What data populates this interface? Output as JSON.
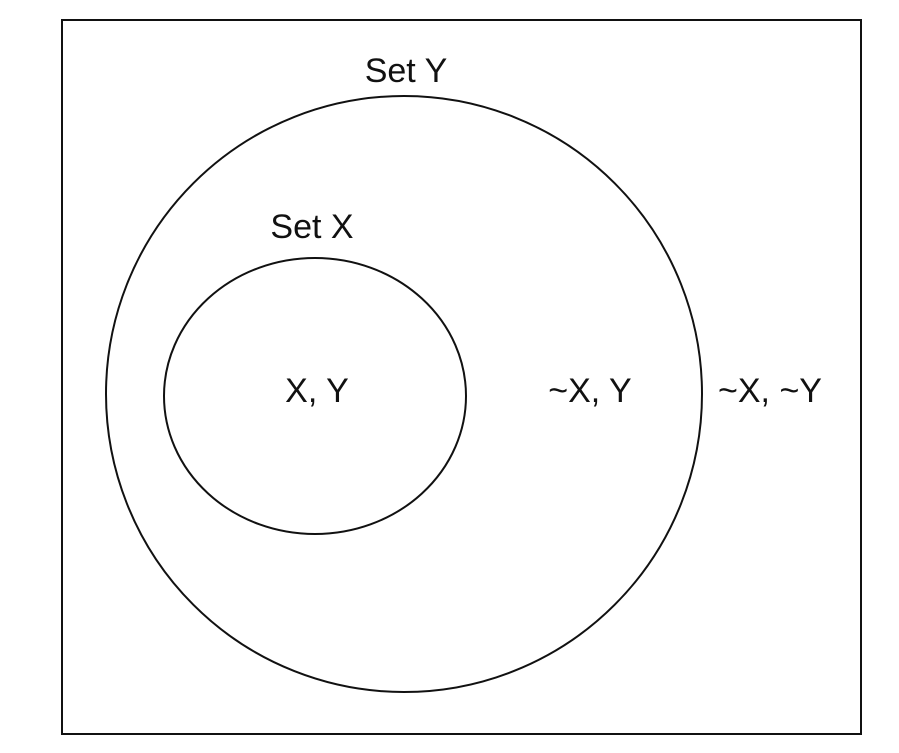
{
  "diagram": {
    "universe_label": "~X, ~Y",
    "set_y": {
      "name": "Set Y",
      "region_label": "~X, Y"
    },
    "set_x": {
      "name": "Set X",
      "region_label": "X, Y"
    },
    "relationship": "Set X is a subset of Set Y",
    "colors": {
      "stroke": "#111111",
      "background": "#ffffff"
    }
  }
}
